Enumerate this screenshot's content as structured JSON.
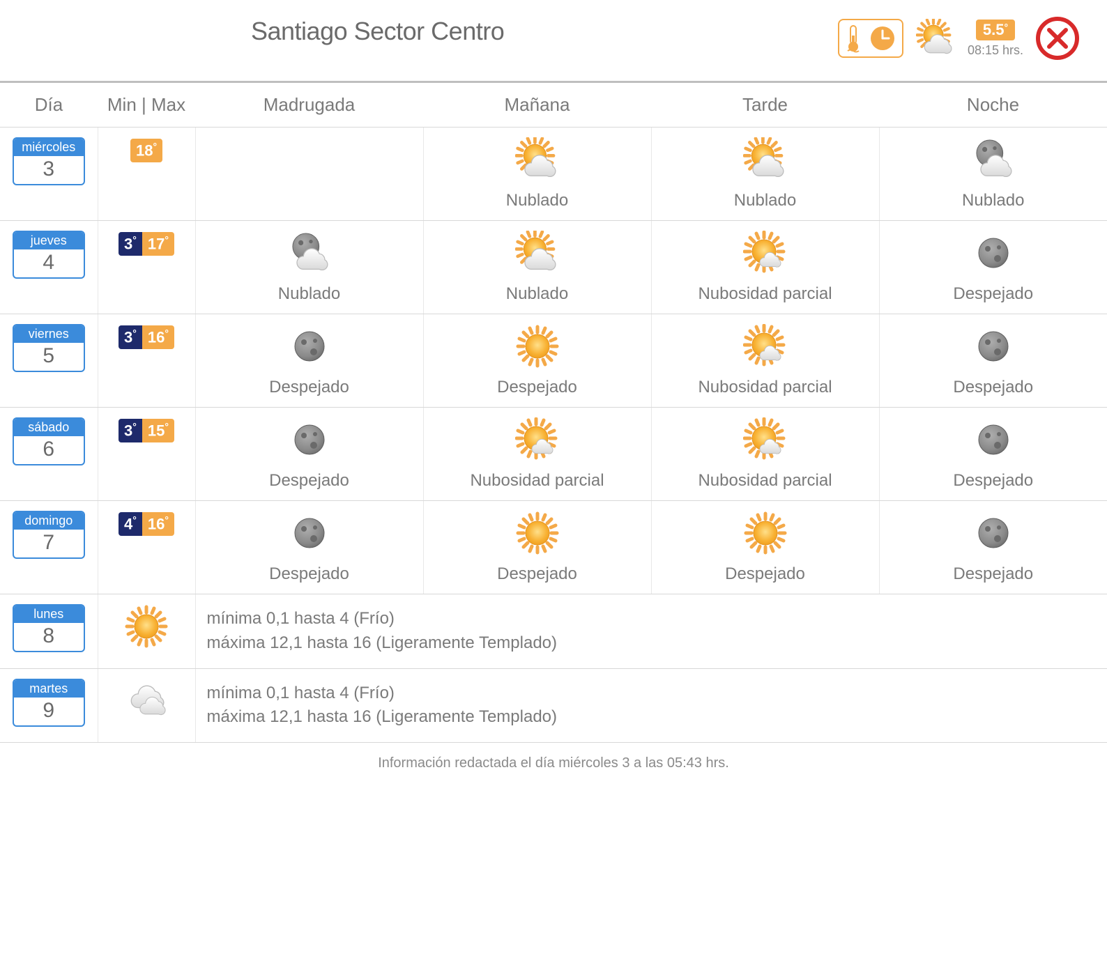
{
  "location_title": "Santiago Sector Centro",
  "current": {
    "temp": "5.5",
    "time": "08:15 hrs.",
    "icon": "sun-cloud"
  },
  "columns": {
    "day": "Día",
    "minmax": "Min | Max",
    "periods": [
      "Madrugada",
      "Mañana",
      "Tarde",
      "Noche"
    ]
  },
  "colors": {
    "accent_orange": "#f4a948",
    "accent_blue": "#3b8bdb",
    "temp_min_bg": "#1e2a6b",
    "temp_max_bg": "#f4a948",
    "close_red": "#d82a2a",
    "text_gray": "#6a6a6a"
  },
  "rows": [
    {
      "day_name": "miércoles",
      "day_num": "3",
      "min": null,
      "max": "18",
      "periods": [
        null,
        {
          "icon": "sun-cloud",
          "label": "Nublado"
        },
        {
          "icon": "sun-cloud",
          "label": "Nublado"
        },
        {
          "icon": "moon-cloud",
          "label": "Nublado"
        }
      ]
    },
    {
      "day_name": "jueves",
      "day_num": "4",
      "min": "3",
      "max": "17",
      "periods": [
        {
          "icon": "moon-cloud",
          "label": "Nublado"
        },
        {
          "icon": "sun-cloud",
          "label": "Nublado"
        },
        {
          "icon": "sun-cloud-small",
          "label": "Nubosidad parcial"
        },
        {
          "icon": "moon",
          "label": "Despejado"
        }
      ]
    },
    {
      "day_name": "viernes",
      "day_num": "5",
      "min": "3",
      "max": "16",
      "periods": [
        {
          "icon": "moon",
          "label": "Despejado"
        },
        {
          "icon": "sun",
          "label": "Despejado"
        },
        {
          "icon": "sun-cloud-small",
          "label": "Nubosidad parcial"
        },
        {
          "icon": "moon",
          "label": "Despejado"
        }
      ]
    },
    {
      "day_name": "sábado",
      "day_num": "6",
      "min": "3",
      "max": "15",
      "periods": [
        {
          "icon": "moon",
          "label": "Despejado"
        },
        {
          "icon": "sun-cloud-small",
          "label": "Nubosidad parcial"
        },
        {
          "icon": "sun-cloud-small",
          "label": "Nubosidad parcial"
        },
        {
          "icon": "moon",
          "label": "Despejado"
        }
      ]
    },
    {
      "day_name": "domingo",
      "day_num": "7",
      "min": "4",
      "max": "16",
      "periods": [
        {
          "icon": "moon",
          "label": "Despejado"
        },
        {
          "icon": "sun",
          "label": "Despejado"
        },
        {
          "icon": "sun",
          "label": "Despejado"
        },
        {
          "icon": "moon",
          "label": "Despejado"
        }
      ]
    }
  ],
  "summary_rows": [
    {
      "day_name": "lunes",
      "day_num": "8",
      "icon": "sun",
      "line1": "mínima 0,1 hasta 4 (Frío)",
      "line2": "máxima 12,1 hasta 16 (Ligeramente Templado)"
    },
    {
      "day_name": "martes",
      "day_num": "9",
      "icon": "clouds",
      "line1": "mínima 0,1 hasta 4 (Frío)",
      "line2": "máxima 12,1 hasta 16 (Ligeramente Templado)"
    }
  ],
  "footer_text": "Información redactada el día miércoles 3 a las 05:43 hrs."
}
